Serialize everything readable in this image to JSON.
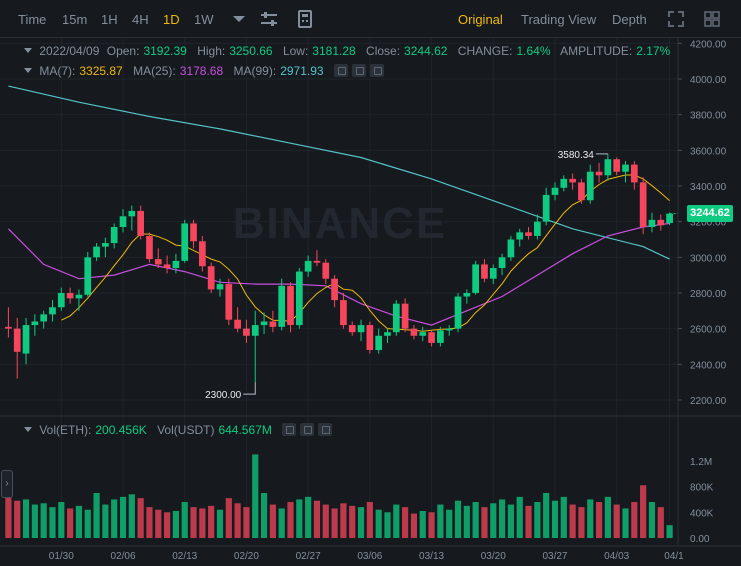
{
  "toolbar": {
    "intervals": [
      "Time",
      "15m",
      "1H",
      "4H",
      "1D",
      "1W"
    ],
    "active_interval": "1D",
    "views": [
      "Original",
      "Trading View",
      "Depth"
    ],
    "active_view": "Original",
    "icons": [
      "chevron-down-icon",
      "indicator-settings-icon",
      "calculator-icon",
      "fullscreen-icon",
      "layout-grid-icon"
    ]
  },
  "ohlc": {
    "date": "2022/04/09",
    "open_label": "Open:",
    "open": "3192.39",
    "high_label": "High:",
    "high": "3250.66",
    "low_label": "Low:",
    "low": "3181.28",
    "close_label": "Close:",
    "close": "3244.62",
    "change_label": "CHANGE:",
    "change": "1.64%",
    "amplitude_label": "AMPLITUDE:",
    "amplitude": "2.17%"
  },
  "ma": {
    "ma7_label": "MA(7):",
    "ma7": "3325.87",
    "ma25_label": "MA(25):",
    "ma25": "3178.68",
    "ma99_label": "MA(99):",
    "ma99": "2971.93"
  },
  "volume": {
    "eth_label": "Vol(ETH):",
    "eth": "200.456K",
    "usdt_label": "Vol(USDT)",
    "usdt": "644.567M"
  },
  "watermark": "BINANCE",
  "last_price_tag": "3244.62",
  "max_annotation": "3580.34",
  "min_annotation": "2300.00",
  "colors": {
    "up": "#0ecb81",
    "down": "#f6465d",
    "ma7": "#f0b90b",
    "ma25": "#c94fe0",
    "ma99": "#53c3c8",
    "active": "#f0b90b",
    "text": "#848e9c",
    "bg": "#161a1e",
    "grid": "#1f242a"
  },
  "chart_data": {
    "type": "candlestick",
    "price_axis": {
      "ticks": [
        2200,
        2400,
        2600,
        2800,
        3000,
        3200,
        3400,
        3600,
        3800,
        4000,
        4200
      ],
      "labels": [
        "2200.00",
        "2400.00",
        "2600.00",
        "2800.00",
        "3000.00",
        "3200.00",
        "3400.00",
        "3600.00",
        "3800.00",
        "4000.00",
        "4200.00"
      ]
    },
    "volume_axis": {
      "ticks": [
        0,
        400000,
        800000,
        1200000
      ],
      "labels": [
        "0.00",
        "400K",
        "800K",
        "1.2M"
      ]
    },
    "date_labels": [
      "01/30",
      "02/06",
      "02/13",
      "02/20",
      "02/27",
      "03/06",
      "03/13",
      "03/20",
      "03/27",
      "04/03",
      "04/1"
    ],
    "date_label_candle_index": [
      6,
      13,
      20,
      27,
      34,
      41,
      48,
      55,
      62,
      69,
      76
    ],
    "candles": [
      {
        "o": 2610,
        "h": 2720,
        "l": 2550,
        "c": 2600
      },
      {
        "o": 2600,
        "h": 2660,
        "l": 2320,
        "c": 2470
      },
      {
        "o": 2460,
        "h": 2660,
        "l": 2400,
        "c": 2620
      },
      {
        "o": 2620,
        "h": 2680,
        "l": 2560,
        "c": 2640
      },
      {
        "o": 2640,
        "h": 2700,
        "l": 2600,
        "c": 2680
      },
      {
        "o": 2680,
        "h": 2760,
        "l": 2640,
        "c": 2720
      },
      {
        "o": 2720,
        "h": 2830,
        "l": 2700,
        "c": 2800
      },
      {
        "o": 2800,
        "h": 2830,
        "l": 2740,
        "c": 2770
      },
      {
        "o": 2770,
        "h": 2820,
        "l": 2700,
        "c": 2790
      },
      {
        "o": 2790,
        "h": 3030,
        "l": 2780,
        "c": 3000
      },
      {
        "o": 3000,
        "h": 3080,
        "l": 2980,
        "c": 3060
      },
      {
        "o": 3060,
        "h": 3110,
        "l": 3000,
        "c": 3080
      },
      {
        "o": 3080,
        "h": 3190,
        "l": 3050,
        "c": 3170
      },
      {
        "o": 3170,
        "h": 3270,
        "l": 3140,
        "c": 3230
      },
      {
        "o": 3230,
        "h": 3290,
        "l": 3150,
        "c": 3260
      },
      {
        "o": 3260,
        "h": 3290,
        "l": 3100,
        "c": 3120
      },
      {
        "o": 3120,
        "h": 3140,
        "l": 2970,
        "c": 2990
      },
      {
        "o": 2990,
        "h": 3050,
        "l": 2940,
        "c": 2960
      },
      {
        "o": 2960,
        "h": 3010,
        "l": 2910,
        "c": 2940
      },
      {
        "o": 2940,
        "h": 3020,
        "l": 2910,
        "c": 2980
      },
      {
        "o": 2980,
        "h": 3210,
        "l": 2970,
        "c": 3190
      },
      {
        "o": 3190,
        "h": 3210,
        "l": 3050,
        "c": 3090
      },
      {
        "o": 3090,
        "h": 3120,
        "l": 2920,
        "c": 2950
      },
      {
        "o": 2950,
        "h": 2970,
        "l": 2800,
        "c": 2820
      },
      {
        "o": 2820,
        "h": 2880,
        "l": 2780,
        "c": 2850
      },
      {
        "o": 2850,
        "h": 2880,
        "l": 2620,
        "c": 2650
      },
      {
        "o": 2650,
        "h": 2720,
        "l": 2580,
        "c": 2600
      },
      {
        "o": 2600,
        "h": 2650,
        "l": 2520,
        "c": 2560
      },
      {
        "o": 2560,
        "h": 2700,
        "l": 2300,
        "c": 2620
      },
      {
        "o": 2620,
        "h": 2690,
        "l": 2570,
        "c": 2640
      },
      {
        "o": 2640,
        "h": 2700,
        "l": 2580,
        "c": 2610
      },
      {
        "o": 2610,
        "h": 2880,
        "l": 2590,
        "c": 2840
      },
      {
        "o": 2840,
        "h": 2860,
        "l": 2580,
        "c": 2620
      },
      {
        "o": 2620,
        "h": 2940,
        "l": 2600,
        "c": 2920
      },
      {
        "o": 2920,
        "h": 3010,
        "l": 2890,
        "c": 2980
      },
      {
        "o": 2980,
        "h": 3040,
        "l": 2950,
        "c": 2970
      },
      {
        "o": 2970,
        "h": 2990,
        "l": 2850,
        "c": 2880
      },
      {
        "o": 2880,
        "h": 2900,
        "l": 2720,
        "c": 2760
      },
      {
        "o": 2760,
        "h": 2800,
        "l": 2600,
        "c": 2620
      },
      {
        "o": 2620,
        "h": 2640,
        "l": 2560,
        "c": 2580
      },
      {
        "o": 2580,
        "h": 2650,
        "l": 2530,
        "c": 2620
      },
      {
        "o": 2620,
        "h": 2640,
        "l": 2460,
        "c": 2480
      },
      {
        "o": 2480,
        "h": 2600,
        "l": 2460,
        "c": 2560
      },
      {
        "o": 2560,
        "h": 2600,
        "l": 2520,
        "c": 2580
      },
      {
        "o": 2580,
        "h": 2760,
        "l": 2560,
        "c": 2740
      },
      {
        "o": 2740,
        "h": 2770,
        "l": 2580,
        "c": 2600
      },
      {
        "o": 2600,
        "h": 2620,
        "l": 2540,
        "c": 2560
      },
      {
        "o": 2560,
        "h": 2610,
        "l": 2530,
        "c": 2580
      },
      {
        "o": 2580,
        "h": 2590,
        "l": 2500,
        "c": 2520
      },
      {
        "o": 2520,
        "h": 2610,
        "l": 2500,
        "c": 2590
      },
      {
        "o": 2590,
        "h": 2620,
        "l": 2560,
        "c": 2600
      },
      {
        "o": 2600,
        "h": 2800,
        "l": 2580,
        "c": 2780
      },
      {
        "o": 2780,
        "h": 2820,
        "l": 2740,
        "c": 2800
      },
      {
        "o": 2800,
        "h": 2980,
        "l": 2790,
        "c": 2960
      },
      {
        "o": 2960,
        "h": 2990,
        "l": 2860,
        "c": 2880
      },
      {
        "o": 2880,
        "h": 2960,
        "l": 2850,
        "c": 2940
      },
      {
        "o": 2940,
        "h": 3020,
        "l": 2900,
        "c": 3000
      },
      {
        "o": 3000,
        "h": 3120,
        "l": 2980,
        "c": 3100
      },
      {
        "o": 3100,
        "h": 3160,
        "l": 3060,
        "c": 3140
      },
      {
        "o": 3140,
        "h": 3170,
        "l": 3100,
        "c": 3120
      },
      {
        "o": 3120,
        "h": 3240,
        "l": 3100,
        "c": 3200
      },
      {
        "o": 3200,
        "h": 3390,
        "l": 3180,
        "c": 3350
      },
      {
        "o": 3350,
        "h": 3420,
        "l": 3320,
        "c": 3390
      },
      {
        "o": 3390,
        "h": 3460,
        "l": 3370,
        "c": 3440
      },
      {
        "o": 3440,
        "h": 3470,
        "l": 3380,
        "c": 3420
      },
      {
        "o": 3420,
        "h": 3440,
        "l": 3300,
        "c": 3320
      },
      {
        "o": 3320,
        "h": 3520,
        "l": 3300,
        "c": 3480
      },
      {
        "o": 3480,
        "h": 3530,
        "l": 3420,
        "c": 3460
      },
      {
        "o": 3460,
        "h": 3580,
        "l": 3430,
        "c": 3550
      },
      {
        "o": 3550,
        "h": 3560,
        "l": 3460,
        "c": 3480
      },
      {
        "o": 3480,
        "h": 3540,
        "l": 3420,
        "c": 3520
      },
      {
        "o": 3520,
        "h": 3540,
        "l": 3380,
        "c": 3420
      },
      {
        "o": 3420,
        "h": 3450,
        "l": 3130,
        "c": 3170
      },
      {
        "o": 3170,
        "h": 3250,
        "l": 3140,
        "c": 3210
      },
      {
        "o": 3210,
        "h": 3240,
        "l": 3150,
        "c": 3180
      },
      {
        "o": 3192,
        "h": 3251,
        "l": 3181,
        "c": 3245
      }
    ],
    "volumes": [
      650000,
      580000,
      600000,
      520000,
      540000,
      480000,
      560000,
      460000,
      500000,
      440000,
      700000,
      520000,
      600000,
      640000,
      680000,
      620000,
      480000,
      440000,
      400000,
      420000,
      560000,
      480000,
      460000,
      500000,
      440000,
      620000,
      540000,
      480000,
      1300000,
      700000,
      520000,
      460000,
      560000,
      600000,
      640000,
      580000,
      520000,
      460000,
      540000,
      500000,
      480000,
      560000,
      440000,
      400000,
      520000,
      480000,
      380000,
      420000,
      400000,
      520000,
      440000,
      580000,
      500000,
      560000,
      480000,
      540000,
      600000,
      520000,
      640000,
      500000,
      560000,
      700000,
      580000,
      640000,
      520000,
      480000,
      600000,
      560000,
      640000,
      520000,
      460000,
      560000,
      820000,
      560000,
      480000,
      200000
    ],
    "ma99_points": [
      [
        0,
        3960
      ],
      [
        8,
        3870
      ],
      [
        16,
        3790
      ],
      [
        24,
        3720
      ],
      [
        32,
        3640
      ],
      [
        40,
        3560
      ],
      [
        48,
        3440
      ],
      [
        56,
        3300
      ],
      [
        64,
        3160
      ],
      [
        72,
        3060
      ],
      [
        76,
        2990
      ]
    ],
    "ma25_points": [
      [
        0,
        3160
      ],
      [
        4,
        2960
      ],
      [
        8,
        2880
      ],
      [
        12,
        2900
      ],
      [
        16,
        2960
      ],
      [
        20,
        2920
      ],
      [
        24,
        2860
      ],
      [
        28,
        2850
      ],
      [
        32,
        2850
      ],
      [
        36,
        2840
      ],
      [
        40,
        2740
      ],
      [
        44,
        2670
      ],
      [
        48,
        2620
      ],
      [
        52,
        2700
      ],
      [
        56,
        2780
      ],
      [
        60,
        2900
      ],
      [
        64,
        3020
      ],
      [
        68,
        3120
      ],
      [
        72,
        3170
      ],
      [
        76,
        3190
      ]
    ]
  }
}
